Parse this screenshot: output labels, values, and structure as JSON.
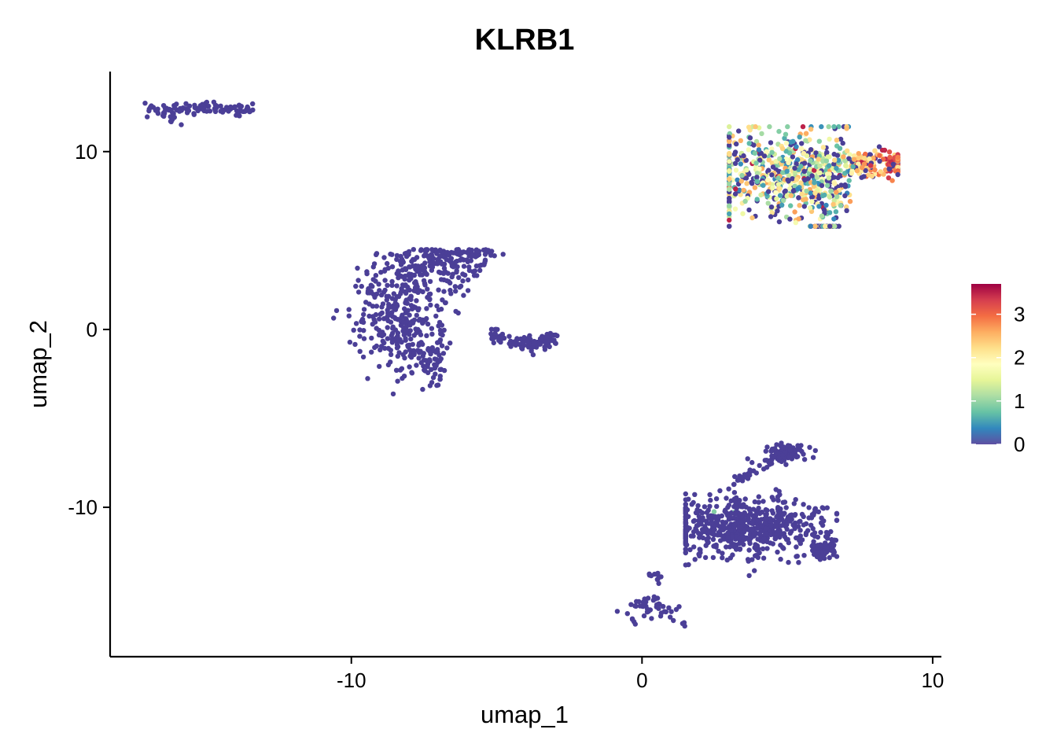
{
  "chart_data": {
    "type": "scatter",
    "title": "KLRB1",
    "xlabel": "umap_1",
    "ylabel": "umap_2",
    "xlim": [
      -18.3,
      10.3
    ],
    "ylim": [
      -18.4,
      14.5
    ],
    "x_ticks": [
      -10,
      0,
      10
    ],
    "x_tick_labels": [
      "-10",
      "0",
      "10"
    ],
    "y_ticks": [
      -10,
      0,
      10
    ],
    "y_tick_labels": [
      "-10",
      "0",
      "10"
    ],
    "grid": false,
    "legend": {
      "position": "right",
      "type": "colorbar",
      "ticks": [
        0,
        1,
        2,
        3
      ],
      "tick_labels": [
        "0",
        "1",
        "2",
        "3"
      ],
      "range": [
        0,
        3.7
      ],
      "colors": [
        "#5E4FA2",
        "#3288BD",
        "#66C2A5",
        "#ABDDA4",
        "#E6F598",
        "#FFFFBF",
        "#FEE08B",
        "#FDAE61",
        "#F46D43",
        "#D53E4F",
        "#9E0142"
      ]
    },
    "base_color": "#4B3F97",
    "clusters": [
      {
        "name": "top-left band",
        "cx": -15.2,
        "cy": 12.4,
        "sx": 1.05,
        "sy": 0.18,
        "n": 110,
        "expr": 0
      },
      {
        "name": "middle crescent",
        "cx": -6.6,
        "cy": 0.8,
        "sx": 1.6,
        "sy": 1.9,
        "n": 700,
        "expr": 0
      },
      {
        "name": "top-right expressing",
        "cx": 5.5,
        "cy": 8.8,
        "sx": 1.9,
        "sy": 1.2,
        "n": 900,
        "expr": 1
      },
      {
        "name": "bottom-right group",
        "cx": 3.8,
        "cy": -11.3,
        "sx": 1.4,
        "sy": 0.8,
        "n": 800,
        "expr": 0
      },
      {
        "name": "bottom-small",
        "cx": 0.4,
        "cy": -15.8,
        "sx": 0.5,
        "sy": 0.4,
        "n": 60,
        "expr": 0
      }
    ]
  }
}
